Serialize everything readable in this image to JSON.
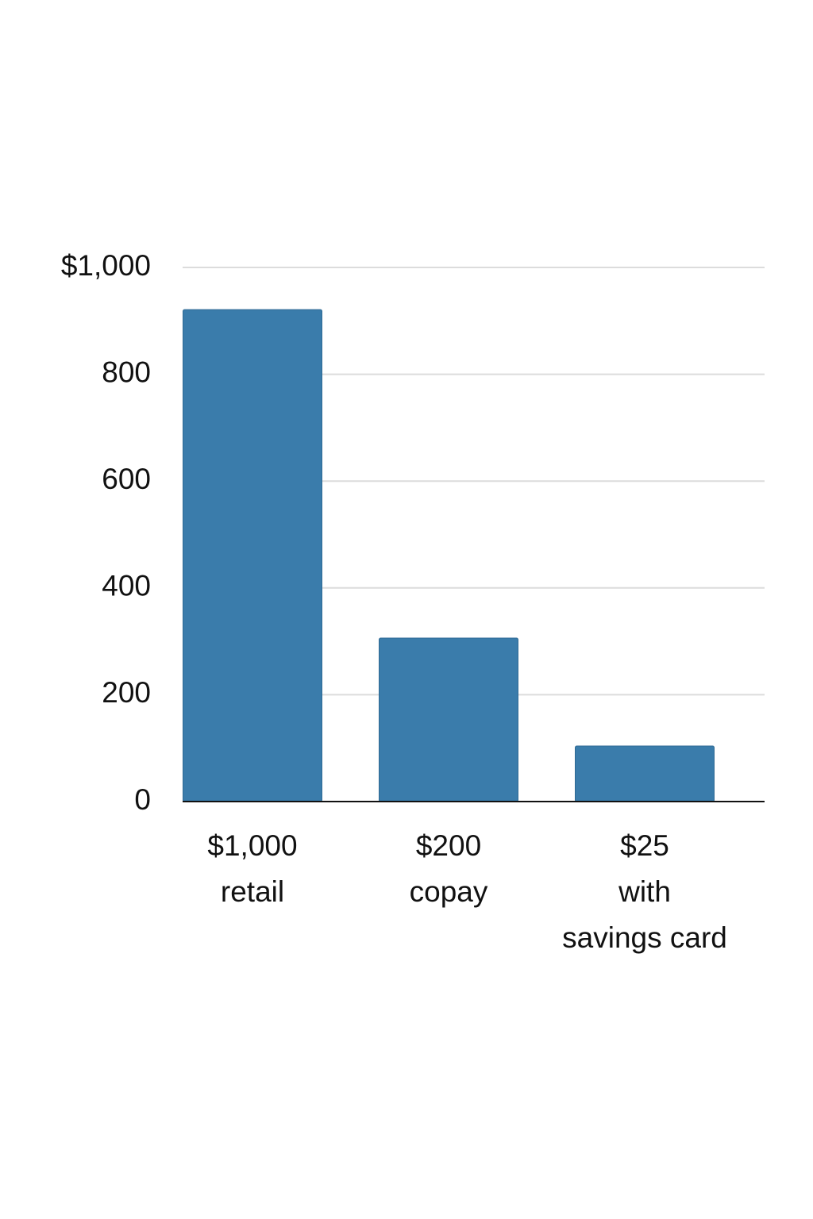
{
  "chart_data": {
    "type": "bar",
    "categories": [
      "$1,000\nretail",
      "$200\ncopay",
      "$25\nwith\nsavings card"
    ],
    "values": [
      921,
      306,
      104
    ],
    "color": "#3a7cab",
    "ylim": [
      0,
      1000
    ],
    "yticks": [
      0,
      200,
      400,
      600,
      800,
      {
        "value": 1000,
        "label": "$1,000"
      }
    ],
    "grid": true
  }
}
